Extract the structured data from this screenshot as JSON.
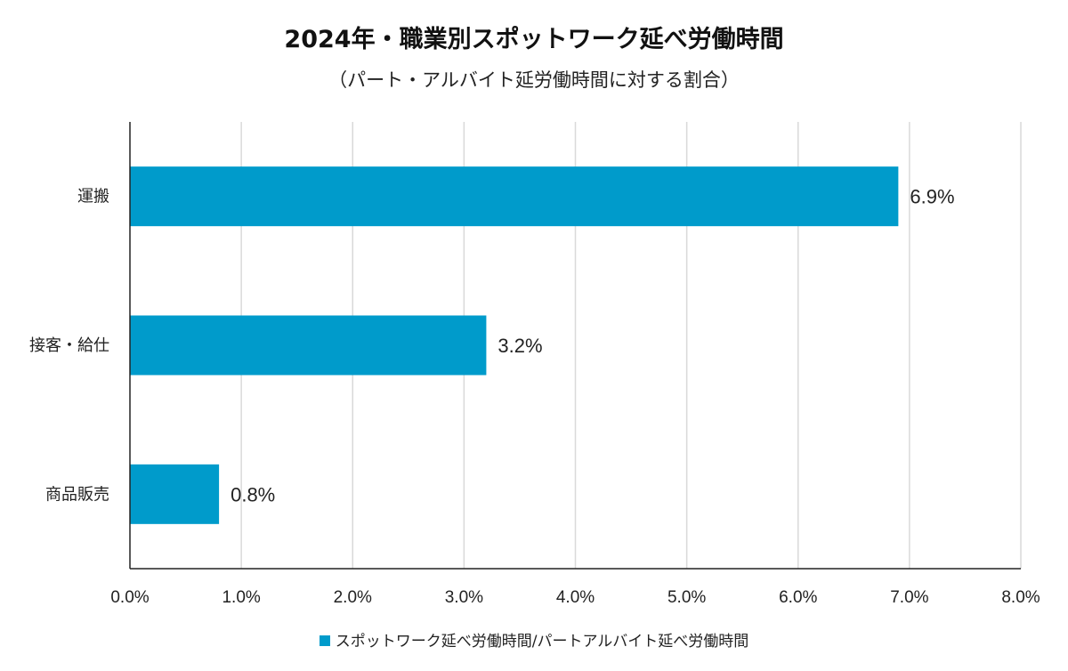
{
  "chart_data": {
    "type": "bar",
    "orientation": "horizontal",
    "title": "2024年・職業別スポットワーク延べ労働時間",
    "subtitle": "（パート・アルバイト延労働時間に対する割合）",
    "categories": [
      "運搬",
      "接客・給仕",
      "商品販売"
    ],
    "values": [
      6.9,
      3.2,
      0.8
    ],
    "value_labels": [
      "6.9%",
      "3.2%",
      "0.8%"
    ],
    "xlim": [
      0,
      8
    ],
    "x_ticks": [
      "0.0%",
      "1.0%",
      "2.0%",
      "3.0%",
      "4.0%",
      "5.0%",
      "6.0%",
      "7.0%",
      "8.0%"
    ],
    "grid": true,
    "legend": {
      "position": "bottom",
      "entries": [
        {
          "label": "スポットワーク延べ労働時間/パートアルバイト延べ労働時間",
          "color": "#009BCB"
        }
      ]
    },
    "bar_color": "#009BCB"
  }
}
